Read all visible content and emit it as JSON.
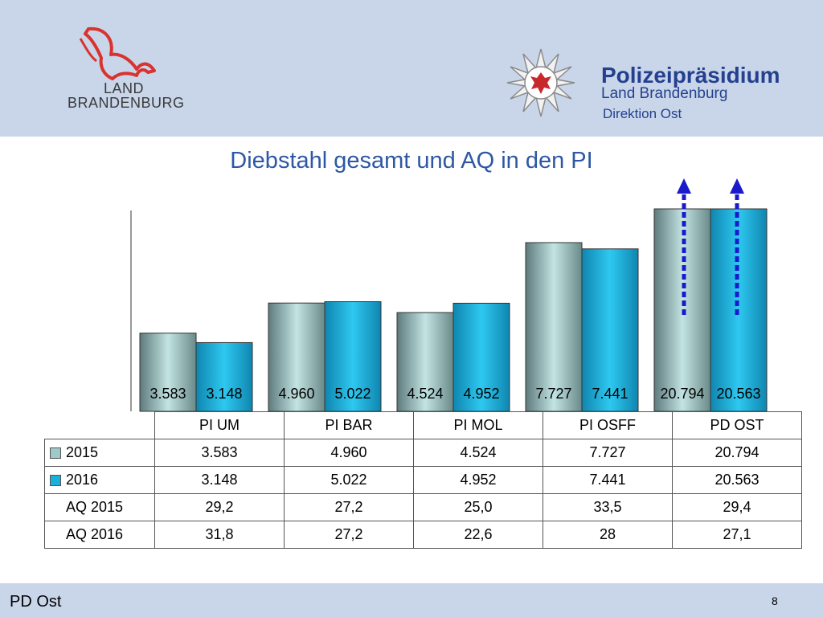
{
  "header": {
    "land_logo": {
      "line1": "LAND",
      "line2": "BRANDENBURG"
    },
    "police": {
      "title": "Polizeipräsidium",
      "subtitle": "Land Brandenburg",
      "unit": "Direktion Ost"
    }
  },
  "slide": {
    "title": "Diebstahl gesamt und AQ in den PI",
    "footer": "PD Ost",
    "page": "8"
  },
  "colors": {
    "header_bg": "#c9d6ea",
    "title": "#2e58a4",
    "series_2015": "#9fc8c8",
    "series_2016": "#1ab0dc",
    "arrow": "#1a1acc"
  },
  "chart_data": {
    "type": "bar",
    "title": "Diebstahl gesamt und AQ in den PI",
    "categories": [
      "PI UM",
      "PI BAR",
      "PI MOL",
      "PI OSFF",
      "PD OST"
    ],
    "series": [
      {
        "name": "2015",
        "values": [
          3583,
          4960,
          4524,
          7727,
          20794
        ],
        "labels": [
          "3.583",
          "4.960",
          "4.524",
          "7.727",
          "20.794"
        ]
      },
      {
        "name": "2016",
        "values": [
          3148,
          5022,
          4952,
          7441,
          20563
        ],
        "labels": [
          "3.148",
          "5.022",
          "4.952",
          "7.441",
          "20.563"
        ]
      }
    ],
    "axis_break_note": "PD OST bars truncated with upward arrows",
    "table_rows": [
      {
        "label": "2015",
        "values": [
          "3.583",
          "4.960",
          "4.524",
          "7.727",
          "20.794"
        ]
      },
      {
        "label": "2016",
        "values": [
          "3.148",
          "5.022",
          "4.952",
          "7.441",
          "20.563"
        ]
      },
      {
        "label": "AQ 2015",
        "values": [
          "29,2",
          "27,2",
          "25,0",
          "33,5",
          "29,4"
        ]
      },
      {
        "label": "AQ 2016",
        "values": [
          "31,8",
          "27,2",
          "22,6",
          "28",
          "27,1"
        ]
      }
    ],
    "grid": false,
    "legend": "data-table"
  }
}
